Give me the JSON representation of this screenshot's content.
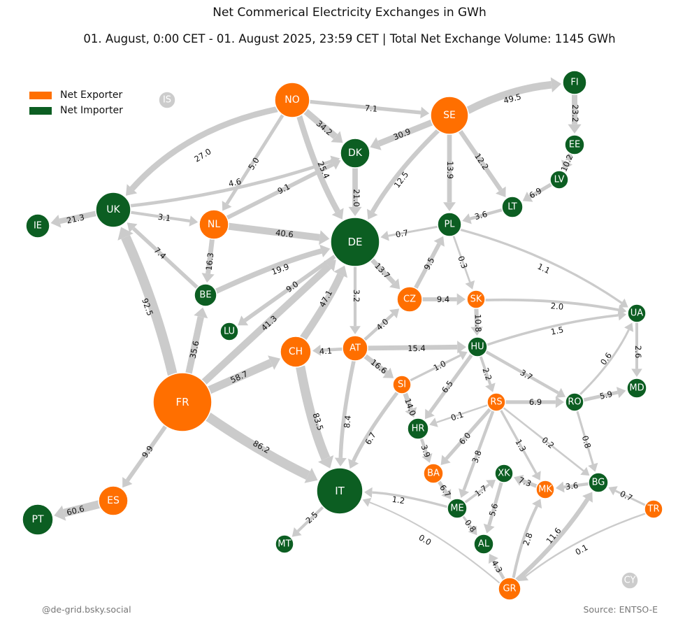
{
  "title": "Net Commerical Electricity Exchanges in GWh",
  "subtitle": "01. August, 0:00 CET - 01. August 2025, 23:59 CET | Total Net Exchange Volume: 1145 GWh",
  "legend": [
    {
      "label": "Net Exporter",
      "color": "#ff6f00"
    },
    {
      "label": "Net Importer",
      "color": "#0c5e22"
    }
  ],
  "colors": {
    "exporter": "#ff6f00",
    "importer": "#0c5e22",
    "inactive": "#cccccc",
    "edge": "#cbcbcb"
  },
  "credit": "@de-grid.bsky.social",
  "source": "Source: ENTSO-E",
  "nodes": [
    {
      "id": "IS",
      "role": "inactive"
    },
    {
      "id": "NO",
      "role": "exporter"
    },
    {
      "id": "SE",
      "role": "exporter"
    },
    {
      "id": "FI",
      "role": "importer"
    },
    {
      "id": "EE",
      "role": "importer"
    },
    {
      "id": "LV",
      "role": "importer"
    },
    {
      "id": "LT",
      "role": "importer"
    },
    {
      "id": "DK",
      "role": "importer"
    },
    {
      "id": "UK",
      "role": "importer"
    },
    {
      "id": "IE",
      "role": "importer"
    },
    {
      "id": "NL",
      "role": "exporter"
    },
    {
      "id": "DE",
      "role": "importer"
    },
    {
      "id": "PL",
      "role": "importer"
    },
    {
      "id": "BE",
      "role": "importer"
    },
    {
      "id": "LU",
      "role": "importer"
    },
    {
      "id": "CZ",
      "role": "exporter"
    },
    {
      "id": "SK",
      "role": "exporter"
    },
    {
      "id": "UA",
      "role": "importer"
    },
    {
      "id": "CH",
      "role": "exporter"
    },
    {
      "id": "AT",
      "role": "exporter"
    },
    {
      "id": "HU",
      "role": "importer"
    },
    {
      "id": "FR",
      "role": "exporter"
    },
    {
      "id": "SI",
      "role": "exporter"
    },
    {
      "id": "MD",
      "role": "importer"
    },
    {
      "id": "RS",
      "role": "exporter"
    },
    {
      "id": "RO",
      "role": "importer"
    },
    {
      "id": "HR",
      "role": "importer"
    },
    {
      "id": "BA",
      "role": "exporter"
    },
    {
      "id": "IT",
      "role": "importer"
    },
    {
      "id": "XK",
      "role": "importer"
    },
    {
      "id": "MK",
      "role": "exporter"
    },
    {
      "id": "BG",
      "role": "importer"
    },
    {
      "id": "TR",
      "role": "exporter"
    },
    {
      "id": "ES",
      "role": "exporter"
    },
    {
      "id": "PT",
      "role": "importer"
    },
    {
      "id": "ME",
      "role": "importer"
    },
    {
      "id": "AL",
      "role": "importer"
    },
    {
      "id": "MT",
      "role": "importer"
    },
    {
      "id": "GR",
      "role": "exporter"
    },
    {
      "id": "CY",
      "role": "inactive"
    }
  ],
  "flows": [
    {
      "from": "NO",
      "to": "UK",
      "value": 27.0
    },
    {
      "from": "NO",
      "to": "NL",
      "value": 5.0
    },
    {
      "from": "NO",
      "to": "DK",
      "value": 34.2
    },
    {
      "from": "NO",
      "to": "SE",
      "value": 7.1
    },
    {
      "from": "NO",
      "to": "DE",
      "value": 25.4
    },
    {
      "from": "SE",
      "to": "FI",
      "value": 49.5
    },
    {
      "from": "SE",
      "to": "DK",
      "value": 30.9
    },
    {
      "from": "SE",
      "to": "DE",
      "value": 12.5
    },
    {
      "from": "SE",
      "to": "PL",
      "value": 13.9
    },
    {
      "from": "SE",
      "to": "LT",
      "value": 12.2
    },
    {
      "from": "FI",
      "to": "EE",
      "value": 23.2
    },
    {
      "from": "EE",
      "to": "LV",
      "value": 10.2
    },
    {
      "from": "LV",
      "to": "LT",
      "value": 6.9
    },
    {
      "from": "LT",
      "to": "PL",
      "value": 3.6
    },
    {
      "from": "UK",
      "to": "DK",
      "value": 4.6
    },
    {
      "from": "NL",
      "to": "DK",
      "value": 9.1
    },
    {
      "from": "DK",
      "to": "DE",
      "value": 21.0
    },
    {
      "from": "UK",
      "to": "IE",
      "value": 21.3
    },
    {
      "from": "UK",
      "to": "NL",
      "value": 3.1
    },
    {
      "from": "BE",
      "to": "UK",
      "value": 7.4
    },
    {
      "from": "FR",
      "to": "UK",
      "value": 92.5
    },
    {
      "from": "NL",
      "to": "BE",
      "value": 16.3
    },
    {
      "from": "NL",
      "to": "DE",
      "value": 40.6
    },
    {
      "from": "BE",
      "to": "DE",
      "value": 19.9
    },
    {
      "from": "DE",
      "to": "LU",
      "value": 9.0
    },
    {
      "from": "PL",
      "to": "DE",
      "value": 0.7
    },
    {
      "from": "DE",
      "to": "CZ",
      "value": 13.7
    },
    {
      "from": "DE",
      "to": "AT",
      "value": 3.2
    },
    {
      "from": "CH",
      "to": "DE",
      "value": 47.1
    },
    {
      "from": "FR",
      "to": "DE",
      "value": 41.3
    },
    {
      "from": "CZ",
      "to": "PL",
      "value": 9.5
    },
    {
      "from": "PL",
      "to": "SK",
      "value": 0.3
    },
    {
      "from": "PL",
      "to": "UA",
      "value": 1.1
    },
    {
      "from": "CZ",
      "to": "SK",
      "value": 9.4
    },
    {
      "from": "AT",
      "to": "CZ",
      "value": 4.0
    },
    {
      "from": "SK",
      "to": "UA",
      "value": 2.0
    },
    {
      "from": "SK",
      "to": "HU",
      "value": 10.8
    },
    {
      "from": "HU",
      "to": "UA",
      "value": 1.5
    },
    {
      "from": "UA",
      "to": "MD",
      "value": 2.6
    },
    {
      "from": "RO",
      "to": "UA",
      "value": 0.6
    },
    {
      "from": "AT",
      "to": "CH",
      "value": 4.1
    },
    {
      "from": "AT",
      "to": "HU",
      "value": 15.4
    },
    {
      "from": "AT",
      "to": "SI",
      "value": 16.6
    },
    {
      "from": "AT",
      "to": "IT",
      "value": 8.4
    },
    {
      "from": "FR",
      "to": "CH",
      "value": 58.7
    },
    {
      "from": "CH",
      "to": "IT",
      "value": 83.5
    },
    {
      "from": "FR",
      "to": "BE",
      "value": 35.6
    },
    {
      "from": "FR",
      "to": "IT",
      "value": 86.2
    },
    {
      "from": "FR",
      "to": "ES",
      "value": 9.9
    },
    {
      "from": "ES",
      "to": "PT",
      "value": 60.6
    },
    {
      "from": "SI",
      "to": "HU",
      "value": 1.0
    },
    {
      "from": "SI",
      "to": "HR",
      "value": 14.0
    },
    {
      "from": "SI",
      "to": "IT",
      "value": 6.7
    },
    {
      "from": "HU",
      "to": "HR",
      "value": 6.5
    },
    {
      "from": "HU",
      "to": "RS",
      "value": 2.2
    },
    {
      "from": "HU",
      "to": "RO",
      "value": 3.7
    },
    {
      "from": "RS",
      "to": "HR",
      "value": 0.1
    },
    {
      "from": "RS",
      "to": "RO",
      "value": 6.9
    },
    {
      "from": "RS",
      "to": "BA",
      "value": 6.0
    },
    {
      "from": "RS",
      "to": "ME",
      "value": 3.8
    },
    {
      "from": "RS",
      "to": "MK",
      "value": 1.3
    },
    {
      "from": "RS",
      "to": "BG",
      "value": 0.2
    },
    {
      "from": "RO",
      "to": "MD",
      "value": 5.9
    },
    {
      "from": "RO",
      "to": "BG",
      "value": 0.8
    },
    {
      "from": "HR",
      "to": "BA",
      "value": 3.9
    },
    {
      "from": "BA",
      "to": "ME",
      "value": 6.7
    },
    {
      "from": "ME",
      "to": "IT",
      "value": 1.2
    },
    {
      "from": "ME",
      "to": "XK",
      "value": 1.7
    },
    {
      "from": "ME",
      "to": "AL",
      "value": 0.8
    },
    {
      "from": "XK",
      "to": "AL",
      "value": 5.6
    },
    {
      "from": "MK",
      "to": "XK",
      "value": 7.3
    },
    {
      "from": "BG",
      "to": "MK",
      "value": 3.6
    },
    {
      "from": "TR",
      "to": "BG",
      "value": 0.7
    },
    {
      "from": "TR",
      "to": "GR",
      "value": 0.1
    },
    {
      "from": "GR",
      "to": "MK",
      "value": 2.8
    },
    {
      "from": "GR",
      "to": "BG",
      "value": 11.6
    },
    {
      "from": "GR",
      "to": "AL",
      "value": 4.3
    },
    {
      "from": "GR",
      "to": "IT",
      "value": 0.0
    },
    {
      "from": "IT",
      "to": "MT",
      "value": 2.5
    }
  ]
}
